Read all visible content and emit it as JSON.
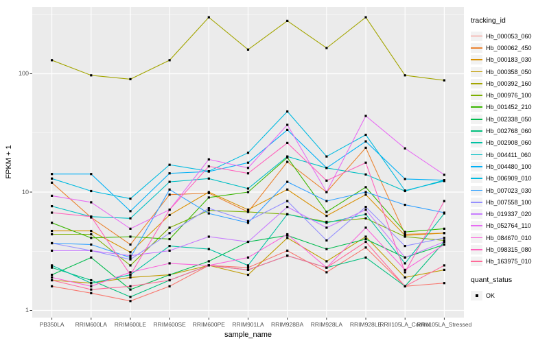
{
  "figure": {
    "xlabel": "sample_name",
    "ylabel": "FPKM + 1"
  },
  "legend": {
    "tracking_title": "tracking_id",
    "quant_title": "quant_status",
    "quant_ok_label": "OK"
  },
  "chart_data": {
    "type": "line",
    "title": "",
    "xlabel": "sample_name",
    "ylabel": "FPKM + 1",
    "x_type": "categorical",
    "y_scale": "log10",
    "y_ticks": [
      1,
      10,
      100
    ],
    "ylim": [
      1,
      370
    ],
    "grid": true,
    "legend_position": "right",
    "panel_bg": "#EBEBEB",
    "grid_color": "#FFFFFF",
    "point_color": "#000000",
    "point_shape": "square",
    "quant_status_all_points": "OK",
    "categories": [
      "PB350LA",
      "RRIM600LA",
      "RRIM600LE",
      "RRIM600SE",
      "RRIM600PE",
      "RRIM901LA",
      "RRIM928BA",
      "RRIM928LA",
      "RRIM928LE",
      "RRII105LA_Control",
      "RRII105LA_Stressed"
    ],
    "series": [
      {
        "name": "Hb_000053_060",
        "color": "#F8766D",
        "values": [
          1.6,
          1.4,
          1.2,
          1.6,
          2.4,
          2.3,
          3.2,
          2.1,
          3.4,
          1.6,
          1.7
        ]
      },
      {
        "name": "Hb_000062_450",
        "color": "#EA8331",
        "values": [
          12.0,
          6.1,
          3.6,
          9.5,
          9.8,
          6.8,
          18.0,
          10.0,
          23.7,
          4.4,
          4.5
        ]
      },
      {
        "name": "Hb_000183_030",
        "color": "#D89000",
        "values": [
          4.7,
          4.7,
          3.1,
          6.4,
          10.0,
          7.1,
          10.5,
          6.3,
          9.5,
          4.3,
          4.5
        ]
      },
      {
        "name": "Hb_000358_050",
        "color": "#C09B00",
        "values": [
          1.8,
          1.7,
          1.9,
          2.0,
          2.4,
          2.0,
          4.1,
          2.6,
          4.2,
          1.9,
          2.2
        ]
      },
      {
        "name": "Hb_000392_160",
        "color": "#A3A500",
        "values": [
          130,
          97,
          90,
          130,
          300,
          160,
          280,
          165,
          300,
          97,
          88
        ]
      },
      {
        "name": "Hb_000976_100",
        "color": "#7CAE00",
        "values": [
          4.4,
          4.4,
          2.4,
          5.0,
          7.0,
          6.8,
          6.5,
          5.6,
          6.0,
          4.2,
          3.9
        ]
      },
      {
        "name": "Hb_001452_210",
        "color": "#39B600",
        "values": [
          5.5,
          4.1,
          4.2,
          4.0,
          9.0,
          10.0,
          19.6,
          6.8,
          11.0,
          4.6,
          4.9
        ]
      },
      {
        "name": "Hb_002338_050",
        "color": "#00BB4E",
        "values": [
          2.0,
          2.8,
          1.5,
          2.0,
          2.6,
          3.8,
          4.3,
          3.3,
          4.0,
          2.8,
          3.6
        ]
      },
      {
        "name": "Hb_002768_060",
        "color": "#00BF7D",
        "values": [
          2.3,
          1.8,
          1.3,
          1.8,
          2.4,
          2.2,
          2.9,
          2.3,
          2.8,
          1.6,
          3.8
        ]
      },
      {
        "name": "Hb_002908_060",
        "color": "#00C1A3",
        "values": [
          2.4,
          1.7,
          2.0,
          3.5,
          3.3,
          2.4,
          6.5,
          5.5,
          6.5,
          2.5,
          6.6
        ]
      },
      {
        "name": "Hb_004411_060",
        "color": "#00BFC4",
        "values": [
          7.6,
          6.2,
          6.0,
          12.2,
          13.0,
          10.7,
          20.0,
          16.0,
          14.1,
          10.2,
          12.6
        ]
      },
      {
        "name": "Hb_004480_100",
        "color": "#00B0F6",
        "values": [
          14.2,
          14.2,
          6.9,
          14.4,
          14.9,
          17.7,
          33.5,
          16.0,
          26.8,
          12.9,
          12.6
        ]
      },
      {
        "name": "Hb_006909_010",
        "color": "#00BAE0",
        "values": [
          13.0,
          10.2,
          8.8,
          17.0,
          15.0,
          21.5,
          48.0,
          20.0,
          30.5,
          10.3,
          12.4
        ]
      },
      {
        "name": "Hb_007023_030",
        "color": "#35A2FF",
        "values": [
          3.7,
          3.6,
          2.8,
          10.5,
          6.6,
          5.5,
          12.2,
          8.4,
          10.0,
          7.8,
          6.7
        ]
      },
      {
        "name": "Hb_007558_100",
        "color": "#9590FF",
        "values": [
          3.7,
          3.2,
          2.7,
          4.5,
          7.3,
          5.7,
          8.4,
          3.9,
          7.5,
          3.5,
          4.1
        ]
      },
      {
        "name": "Hb_019337_020",
        "color": "#C77CFF",
        "values": [
          3.2,
          3.2,
          2.9,
          3.2,
          4.2,
          3.8,
          7.5,
          5.0,
          7.1,
          2.8,
          3.8
        ]
      },
      {
        "name": "Hb_052764_110",
        "color": "#E76BF3",
        "values": [
          9.3,
          8.2,
          4.9,
          7.1,
          18.9,
          16.0,
          37.0,
          10.0,
          44.0,
          23.4,
          14.0
        ]
      },
      {
        "name": "Hb_084670_010",
        "color": "#FA62DB",
        "values": [
          1.9,
          1.6,
          2.1,
          2.5,
          2.4,
          2.8,
          4.4,
          2.3,
          5.0,
          2.2,
          3.6
        ]
      },
      {
        "name": "Hb_098315_080",
        "color": "#FF62BC",
        "values": [
          6.7,
          6.2,
          2.0,
          7.1,
          16.5,
          14.4,
          26.0,
          12.5,
          17.7,
          2.1,
          8.4
        ]
      },
      {
        "name": "Hb_163975_010",
        "color": "#FF6A98",
        "values": [
          1.8,
          1.5,
          1.6,
          1.8,
          2.4,
          2.2,
          2.9,
          2.3,
          3.8,
          1.6,
          2.4
        ]
      }
    ]
  }
}
